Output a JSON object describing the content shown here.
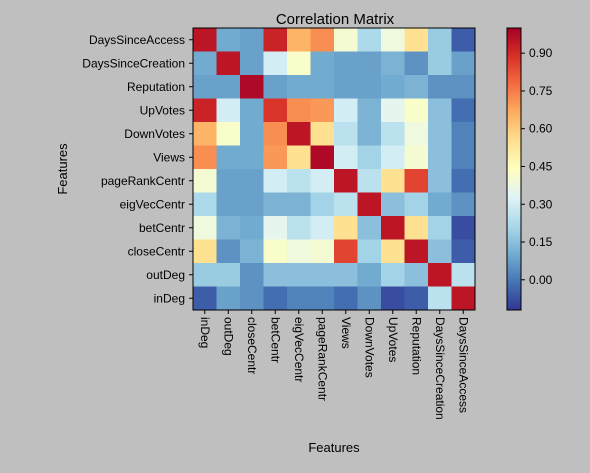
{
  "chart_data": {
    "type": "heatmap",
    "title": "Correlation Matrix",
    "xlabel": "Features",
    "ylabel": "Features",
    "rows": [
      "DaysSinceAccess",
      "DaysSinceCreation",
      "Reputation",
      "UpVotes",
      "DownVotes",
      "Views",
      "pageRankCentr",
      "eigVecCentr",
      "betCentr",
      "closeCentr",
      "outDeg",
      "inDeg"
    ],
    "columns": [
      "inDeg",
      "outDeg",
      "closeCentr",
      "betCentr",
      "eigVecCentr",
      "pageRankCentr",
      "Views",
      "DownVotes",
      "UpVotes",
      "Reputation",
      "DaysSinceCreation",
      "DaysSinceAccess"
    ],
    "values": [
      [
        0.95,
        0.1,
        0.08,
        0.92,
        0.65,
        0.72,
        0.4,
        0.22,
        0.38,
        0.55,
        0.18,
        -0.05
      ],
      [
        0.1,
        0.95,
        0.08,
        0.3,
        0.42,
        0.1,
        0.08,
        0.08,
        0.12,
        0.05,
        0.18,
        0.08
      ],
      [
        0.08,
        0.08,
        0.98,
        0.08,
        0.1,
        0.1,
        0.08,
        0.08,
        0.1,
        0.12,
        0.05,
        0.05
      ],
      [
        0.92,
        0.3,
        0.1,
        0.88,
        0.72,
        0.7,
        0.3,
        0.12,
        0.35,
        0.42,
        0.15,
        -0.02
      ],
      [
        0.65,
        0.42,
        0.1,
        0.72,
        0.95,
        0.55,
        0.25,
        0.12,
        0.25,
        0.38,
        0.15,
        0.02
      ],
      [
        0.72,
        0.1,
        0.1,
        0.7,
        0.55,
        0.98,
        0.3,
        0.2,
        0.3,
        0.4,
        0.15,
        0.02
      ],
      [
        0.4,
        0.08,
        0.08,
        0.3,
        0.25,
        0.3,
        0.95,
        0.25,
        0.55,
        0.85,
        0.15,
        -0.02
      ],
      [
        0.22,
        0.08,
        0.08,
        0.12,
        0.12,
        0.2,
        0.25,
        0.95,
        0.15,
        0.2,
        0.1,
        0.05
      ],
      [
        0.38,
        0.12,
        0.1,
        0.35,
        0.25,
        0.3,
        0.55,
        0.15,
        0.95,
        0.55,
        0.2,
        -0.08
      ],
      [
        0.55,
        0.05,
        0.12,
        0.42,
        0.38,
        0.4,
        0.85,
        0.2,
        0.55,
        0.95,
        0.15,
        -0.05
      ],
      [
        0.18,
        0.18,
        0.05,
        0.15,
        0.15,
        0.15,
        0.15,
        0.1,
        0.2,
        0.15,
        0.95,
        0.25
      ],
      [
        -0.05,
        0.08,
        0.05,
        -0.02,
        0.02,
        0.02,
        -0.02,
        0.05,
        -0.08,
        -0.05,
        0.25,
        0.95
      ]
    ],
    "colorbar": {
      "range": [
        -0.12,
        1.0
      ],
      "ticks": [
        0.0,
        0.15,
        0.3,
        0.45,
        0.6,
        0.75,
        0.9
      ],
      "tick_labels": [
        "0.00",
        "0.15",
        "0.30",
        "0.45",
        "0.60",
        "0.75",
        "0.90"
      ],
      "colormap": [
        "#313695",
        "#4575b4",
        "#74add1",
        "#abd9e9",
        "#e0f3f8",
        "#ffffbf",
        "#fee090",
        "#fdae61",
        "#f46d43",
        "#d73027",
        "#a50026"
      ]
    },
    "grid": false
  }
}
